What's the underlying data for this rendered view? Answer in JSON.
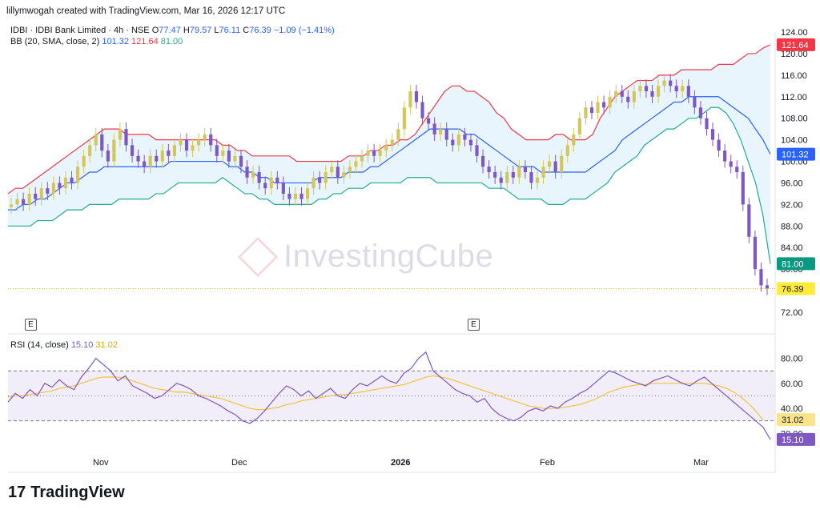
{
  "header": {
    "creator": "lillymwogah created with TradingView.com, Mar 16, 2026 12:17 UTC",
    "symbol": "IDBI · IDBI Bank Limited · 4h · NSE",
    "o_label": "O",
    "o_val": "77.47",
    "h_label": "H",
    "h_val": "79.57",
    "l_label": "L",
    "l_val": "76.11",
    "c_label": "C",
    "c_val": "76.39",
    "change": "−1.09 (−1.41%)",
    "bb_label": "BB (20, SMA, close, 2)",
    "bb_basis": "101.32",
    "bb_upper": "121.64",
    "bb_lower": "81.00",
    "rsi_label": "RSI (14, close)",
    "rsi_val": "15.10",
    "rsi_ma": "31.02"
  },
  "events": [
    "E",
    "E"
  ],
  "watermark": "InvestingCube",
  "logo": "TradingView",
  "colors": {
    "up": "#d4c65a",
    "down": "#7e57c2",
    "upper": "#f23645",
    "lower": "#22ab94",
    "basis": "#2962ff",
    "fill": "#e3f2fd",
    "rsi": "#7e57c2",
    "rsi_ma": "#f5c23e"
  },
  "chart_data": [
    {
      "type": "candlestick",
      "title": "IDBI · IDBI Bank Limited · 4h · NSE",
      "x_ticks": [
        "Nov",
        "Dec",
        "2026",
        "Feb",
        "Mar"
      ],
      "y_ticks": [
        72,
        76,
        80,
        84,
        88,
        92,
        96,
        100,
        104,
        108,
        112,
        116,
        120,
        124
      ],
      "ylim": [
        72,
        124
      ],
      "last_labels": {
        "upper": "121.64",
        "basis": "101.32",
        "lower": "81.00",
        "close": "76.39"
      },
      "close": [
        92,
        93,
        92,
        94,
        93,
        95,
        94,
        96,
        95,
        97,
        96,
        99,
        101,
        103,
        105,
        102,
        100,
        104,
        106,
        103,
        101,
        100,
        99,
        101,
        100,
        102,
        101,
        103,
        104,
        102,
        103,
        104,
        105,
        103,
        101,
        102,
        100,
        101,
        99,
        97,
        98,
        96,
        95,
        97,
        96,
        94,
        93,
        94,
        93,
        95,
        97,
        96,
        98,
        99,
        97,
        98,
        99,
        100,
        101,
        102,
        101,
        102,
        103,
        104,
        106,
        110,
        113,
        111,
        108,
        107,
        105,
        106,
        104,
        103,
        105,
        104,
        103,
        101,
        99,
        98,
        97,
        96,
        98,
        97,
        99,
        98,
        96,
        97,
        99,
        100,
        98,
        101,
        103,
        105,
        108,
        110,
        109,
        111,
        110,
        112,
        113,
        112,
        111,
        113,
        114,
        113,
        112,
        114,
        115,
        114,
        113,
        114,
        112,
        110,
        108,
        106,
        104,
        102,
        100,
        99,
        98,
        92,
        86,
        80,
        77,
        76.39
      ],
      "series": [
        {
          "name": "Upper",
          "values": [
            94,
            95,
            95,
            96,
            97,
            98,
            99,
            100,
            101,
            102,
            103,
            104,
            105,
            106,
            106,
            106,
            105,
            105,
            105,
            105,
            104,
            104,
            104,
            104,
            104,
            104,
            104,
            104,
            104,
            103,
            103,
            102,
            102,
            101,
            101,
            101,
            101,
            101,
            101,
            100,
            100,
            100,
            100,
            100,
            100,
            100,
            101,
            101,
            101,
            102,
            102,
            103,
            103,
            104,
            104,
            105,
            107,
            109,
            111,
            113,
            114,
            114,
            113,
            113,
            112,
            111,
            109,
            108,
            106,
            105,
            104,
            104,
            104,
            104,
            105,
            105,
            104,
            104,
            104,
            105,
            108,
            110,
            112,
            113,
            114,
            115,
            115,
            115,
            116,
            116,
            116,
            117,
            117,
            117,
            117,
            117,
            118,
            118,
            118,
            119,
            120,
            120,
            121,
            121.64
          ]
        },
        {
          "name": "Basis",
          "values": [
            91,
            91,
            92,
            92,
            93,
            93,
            94,
            95,
            96,
            96,
            97,
            98,
            98,
            99,
            99,
            99,
            99,
            99,
            99,
            99,
            99,
            99,
            100,
            100,
            100,
            100,
            100,
            100,
            100,
            100,
            99,
            99,
            98,
            98,
            97,
            97,
            96,
            96,
            96,
            96,
            96,
            96,
            97,
            97,
            97,
            97,
            98,
            98,
            98,
            99,
            99,
            100,
            101,
            102,
            103,
            104,
            105,
            106,
            106,
            106,
            106,
            106,
            105,
            105,
            104,
            103,
            102,
            101,
            100,
            99,
            99,
            99,
            98,
            98,
            98,
            98,
            98,
            98,
            98,
            99,
            100,
            101,
            102,
            104,
            105,
            106,
            107,
            108,
            109,
            110,
            111,
            111,
            112,
            112,
            112,
            112,
            112,
            111,
            110,
            109,
            108,
            106,
            104,
            101.32
          ]
        },
        {
          "name": "Lower",
          "values": [
            88,
            88,
            88,
            88,
            89,
            89,
            89,
            90,
            91,
            91,
            91,
            92,
            92,
            92,
            92,
            93,
            93,
            93,
            93,
            93,
            94,
            94,
            95,
            96,
            96,
            96,
            96,
            96,
            96,
            97,
            96,
            95,
            94,
            94,
            93,
            93,
            92,
            92,
            92,
            92,
            92,
            92,
            93,
            93,
            94,
            94,
            95,
            95,
            95,
            96,
            96,
            96,
            96,
            96,
            97,
            97,
            97,
            97,
            96,
            96,
            96,
            96,
            96,
            96,
            96,
            95,
            95,
            95,
            94,
            93,
            93,
            93,
            93,
            92,
            92,
            92,
            93,
            93,
            93,
            94,
            95,
            96,
            98,
            99,
            100,
            101,
            103,
            104,
            105,
            106,
            106,
            107,
            108,
            108,
            109,
            110,
            110,
            109,
            107,
            104,
            100,
            96,
            90,
            81.0
          ]
        }
      ]
    },
    {
      "type": "line",
      "title": "RSI (14, close)",
      "y_ticks": [
        20,
        40,
        60,
        80
      ],
      "ylim": [
        8,
        90
      ],
      "bands": [
        30,
        50,
        70
      ],
      "last_labels": {
        "rsi_ma": "31.02",
        "rsi": "15.10"
      },
      "series": [
        {
          "name": "RSI",
          "values": [
            45,
            52,
            48,
            55,
            50,
            60,
            57,
            63,
            58,
            55,
            65,
            72,
            80,
            75,
            70,
            62,
            66,
            58,
            55,
            52,
            48,
            50,
            55,
            60,
            58,
            55,
            50,
            48,
            45,
            42,
            38,
            35,
            30,
            28,
            32,
            38,
            45,
            52,
            58,
            55,
            50,
            54,
            48,
            52,
            56,
            50,
            48,
            55,
            60,
            58,
            62,
            66,
            62,
            60,
            68,
            72,
            80,
            85,
            70,
            65,
            60,
            55,
            52,
            50,
            45,
            48,
            40,
            35,
            32,
            30,
            33,
            38,
            40,
            38,
            42,
            40,
            45,
            48,
            52,
            55,
            60,
            65,
            70,
            68,
            65,
            62,
            60,
            58,
            62,
            64,
            66,
            63,
            60,
            58,
            62,
            65,
            60,
            55,
            50,
            45,
            40,
            35,
            30,
            25,
            15.1
          ]
        },
        {
          "name": "RSI MA",
          "values": [
            49,
            50,
            50,
            51,
            52,
            53,
            54,
            56,
            57,
            58,
            60,
            62,
            64,
            65,
            65,
            65,
            64,
            62,
            60,
            58,
            56,
            55,
            54,
            53,
            53,
            52,
            51,
            50,
            49,
            48,
            46,
            44,
            42,
            40,
            39,
            39,
            40,
            41,
            43,
            44,
            46,
            47,
            48,
            49,
            50,
            51,
            51,
            52,
            53,
            54,
            55,
            56,
            57,
            58,
            59,
            61,
            63,
            65,
            66,
            65,
            64,
            62,
            60,
            58,
            56,
            54,
            52,
            50,
            48,
            46,
            44,
            42,
            41,
            40,
            40,
            40,
            41,
            42,
            43,
            45,
            47,
            50,
            53,
            55,
            57,
            58,
            59,
            59,
            60,
            60,
            60,
            60,
            60,
            60,
            60,
            60,
            59,
            58,
            56,
            53,
            49,
            44,
            38,
            31.02
          ]
        }
      ]
    }
  ]
}
